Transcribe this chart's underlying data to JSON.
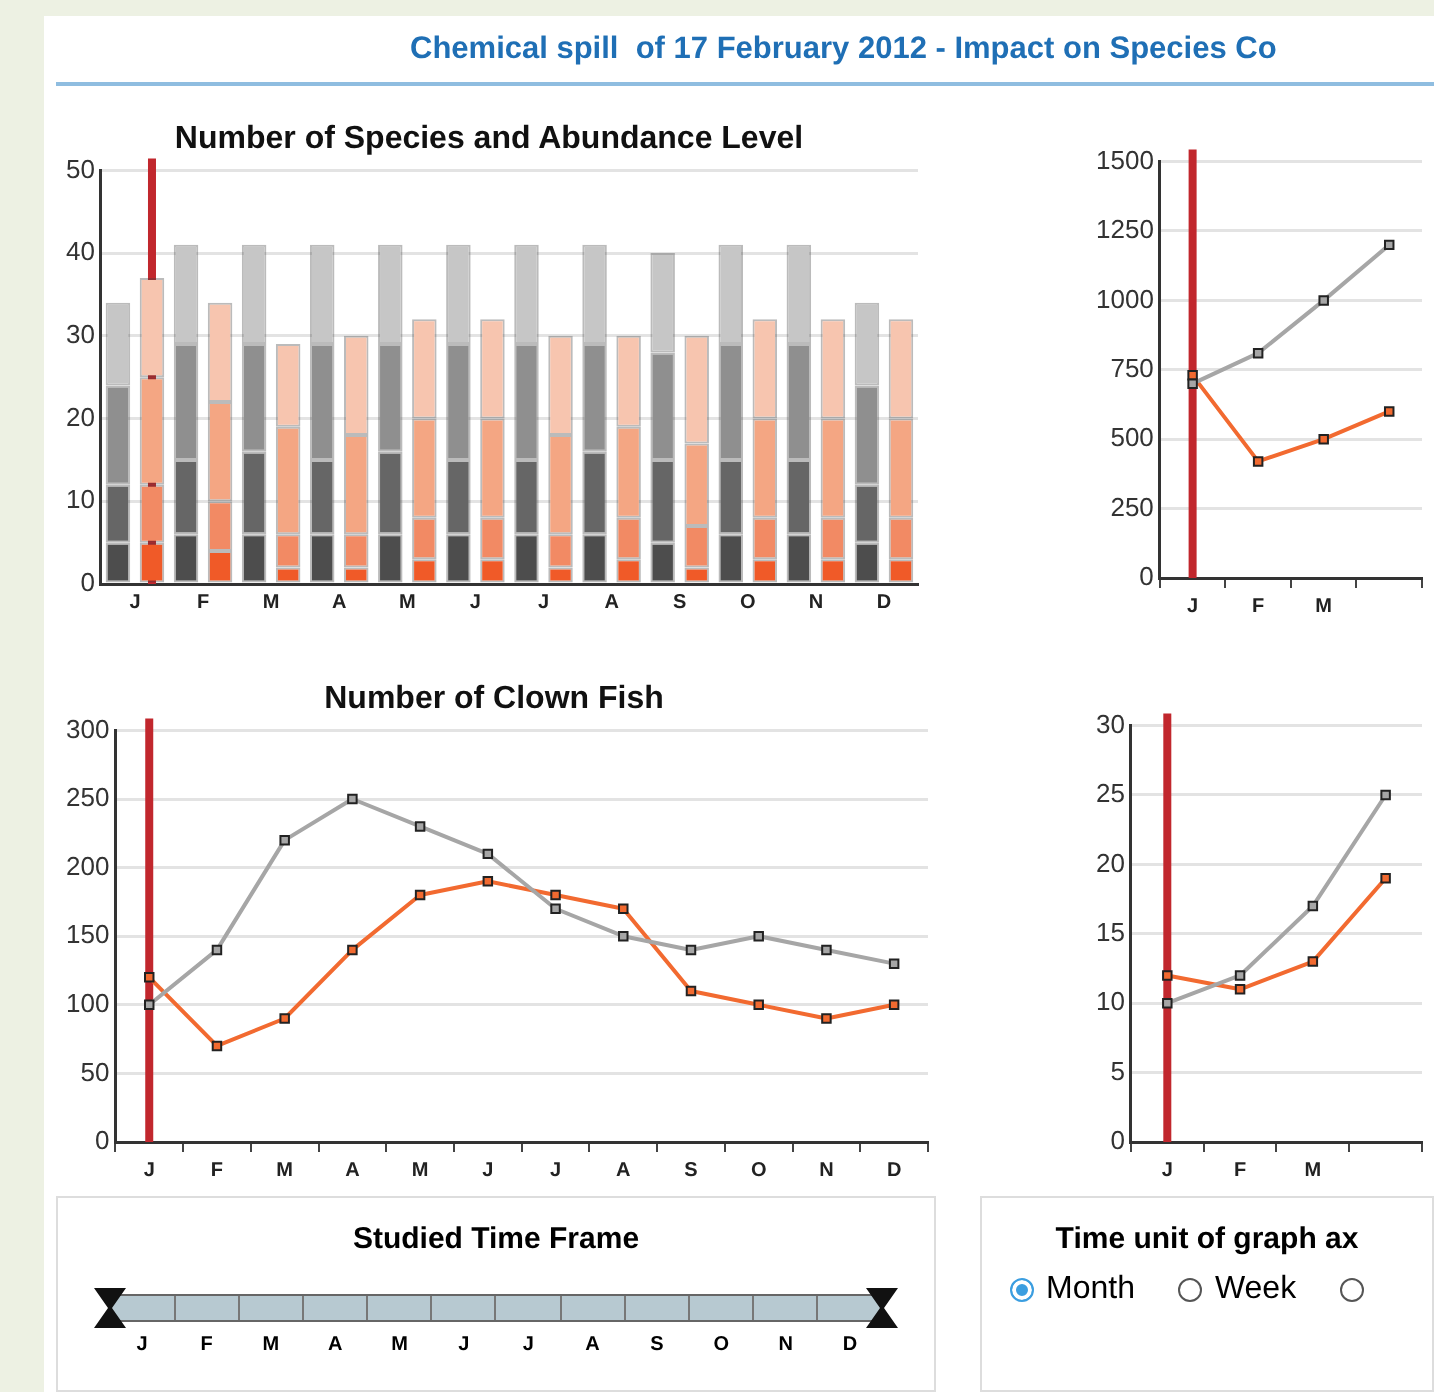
{
  "chart_data": [
    {
      "type": "other",
      "title": "Chemical spill  of 17 February 2012 - Impact on Species Co"
    },
    {
      "type": "bar",
      "title": "Number of Species and Abundance Level",
      "stacked": true,
      "categories": [
        null,
        "J",
        null,
        "F",
        null,
        "M",
        null,
        "A",
        null,
        "M",
        null,
        "J",
        null,
        "J",
        null,
        "A",
        null,
        "S",
        null,
        "O",
        null,
        "N",
        null,
        "D"
      ],
      "ylim": [
        0,
        50
      ],
      "yticks": [
        0,
        10,
        20,
        30,
        40,
        50
      ],
      "grid": "y",
      "ref_lines": [
        {
          "axis": "x",
          "value": "J",
          "color": "#c1272d"
        }
      ],
      "series": [
        {
          "color": "#4d4d4d",
          "values": [
            5,
            null,
            6,
            null,
            6,
            null,
            6,
            null,
            6,
            null,
            6,
            null,
            6,
            null,
            6,
            null,
            5,
            null,
            6,
            null,
            6,
            null,
            5,
            null
          ]
        },
        {
          "color": "#666666",
          "values": [
            7,
            null,
            9,
            null,
            10,
            null,
            9,
            null,
            10,
            null,
            9,
            null,
            9,
            null,
            10,
            null,
            10,
            null,
            9,
            null,
            9,
            null,
            7,
            null
          ]
        },
        {
          "color": "#8f8f8f",
          "values": [
            12,
            null,
            14,
            null,
            13,
            null,
            14,
            null,
            13,
            null,
            14,
            null,
            14,
            null,
            13,
            null,
            13,
            null,
            14,
            null,
            14,
            null,
            12,
            null
          ]
        },
        {
          "color": "#c6c6c6",
          "values": [
            10,
            null,
            12,
            null,
            12,
            null,
            12,
            null,
            12,
            null,
            12,
            null,
            12,
            null,
            12,
            null,
            12,
            null,
            12,
            null,
            12,
            null,
            10,
            null
          ]
        },
        {
          "color": "#f05a28",
          "values": [
            null,
            5,
            null,
            4,
            null,
            2,
            null,
            2,
            null,
            3,
            null,
            3,
            null,
            2,
            null,
            3,
            null,
            2,
            null,
            3,
            null,
            3,
            null,
            3
          ]
        },
        {
          "color": "#f28a64",
          "values": [
            null,
            7,
            null,
            6,
            null,
            4,
            null,
            4,
            null,
            5,
            null,
            5,
            null,
            4,
            null,
            5,
            null,
            5,
            null,
            5,
            null,
            5,
            null,
            5
          ]
        },
        {
          "color": "#f4a683",
          "values": [
            null,
            13,
            null,
            12,
            null,
            13,
            null,
            12,
            null,
            12,
            null,
            12,
            null,
            12,
            null,
            11,
            null,
            10,
            null,
            12,
            null,
            12,
            null,
            12
          ]
        },
        {
          "color": "#f7c5af",
          "values": [
            null,
            12,
            null,
            12,
            null,
            10,
            null,
            12,
            null,
            12,
            null,
            12,
            null,
            12,
            null,
            11,
            null,
            13,
            null,
            12,
            null,
            12,
            null,
            12
          ]
        }
      ]
    },
    {
      "type": "line",
      "marker": "square",
      "categories": [
        "J",
        "F",
        "M",
        null
      ],
      "ylim": [
        0,
        1500
      ],
      "yticks": [
        0,
        250,
        500,
        750,
        1000,
        1250,
        1500
      ],
      "grid": "y",
      "ref_lines": [
        {
          "axis": "x",
          "value": "J",
          "color": "#c1272d"
        }
      ],
      "series": [
        {
          "color": "#a6a6a6",
          "values": [
            700,
            810,
            1000,
            1200
          ]
        },
        {
          "color": "#f26a30",
          "values": [
            730,
            420,
            500,
            600
          ]
        }
      ]
    },
    {
      "type": "line",
      "title": "Number of Clown Fish",
      "marker": "square",
      "categories": [
        "J",
        "F",
        "M",
        "A",
        "M",
        "J",
        "J",
        "A",
        "S",
        "O",
        "N",
        "D"
      ],
      "ylim": [
        0,
        300
      ],
      "yticks": [
        0,
        50,
        100,
        150,
        200,
        250,
        300
      ],
      "grid": "y",
      "ref_lines": [
        {
          "axis": "x",
          "value": "J",
          "color": "#c1272d"
        }
      ],
      "series": [
        {
          "color": "#a6a6a6",
          "values": [
            100,
            140,
            220,
            250,
            230,
            210,
            170,
            150,
            140,
            150,
            140,
            130
          ]
        },
        {
          "color": "#f26a30",
          "values": [
            120,
            70,
            90,
            140,
            180,
            190,
            180,
            170,
            110,
            100,
            90,
            100
          ]
        }
      ]
    },
    {
      "type": "line",
      "marker": "square",
      "categories": [
        "J",
        "F",
        "M",
        null
      ],
      "ylim": [
        0,
        30
      ],
      "yticks": [
        0,
        5,
        10,
        15,
        20,
        25,
        30
      ],
      "grid": "y",
      "ref_lines": [
        {
          "axis": "x",
          "value": "J",
          "color": "#c1272d"
        }
      ],
      "series": [
        {
          "color": "#a6a6a6",
          "values": [
            10,
            12,
            17,
            25
          ]
        },
        {
          "color": "#f26a30",
          "values": [
            12,
            11,
            13,
            19
          ]
        }
      ]
    },
    {
      "type": "other",
      "title": "Studied Time Frame",
      "categories": [
        "J",
        "F",
        "M",
        "A",
        "M",
        "J",
        "J",
        "A",
        "S",
        "O",
        "N",
        "D"
      ]
    },
    {
      "type": "other",
      "title": "Time unit of graph ax",
      "categories": [
        "Month",
        "Week",
        null
      ]
    }
  ]
}
